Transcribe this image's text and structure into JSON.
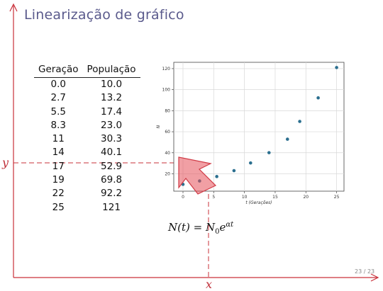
{
  "slide": {
    "title": "Linearização de gráfico",
    "page": "23 / 23"
  },
  "table": {
    "headers": [
      "Geração",
      "População"
    ],
    "rows": [
      [
        "0.0",
        "10.0"
      ],
      [
        "2.7",
        "13.2"
      ],
      [
        "5.5",
        "17.4"
      ],
      [
        "8.3",
        "23.0"
      ],
      [
        "11",
        "30.3"
      ],
      [
        "14",
        "40.1"
      ],
      [
        "17",
        "52.9"
      ],
      [
        "19",
        "69.8"
      ],
      [
        "22",
        "92.2"
      ],
      [
        "25",
        "121"
      ]
    ]
  },
  "formula": {
    "lhs": "N(t)",
    "base": "N",
    "sub": "0",
    "exp": "αt"
  },
  "labels": {
    "x": "x",
    "y": "y"
  },
  "chart_data": {
    "type": "scatter",
    "x": [
      0.0,
      2.7,
      5.5,
      8.3,
      11,
      14,
      17,
      19,
      22,
      25
    ],
    "y": [
      10.0,
      13.2,
      17.4,
      23.0,
      30.3,
      40.1,
      52.9,
      69.8,
      92.2,
      121
    ],
    "xlabel": "t (Gerações)",
    "ylabel": "N",
    "xticks": [
      0,
      5,
      10,
      15,
      20,
      25
    ],
    "yticks": [
      20,
      40,
      60,
      80,
      100,
      120
    ],
    "xlim": [
      -1.5,
      26.2
    ],
    "ylim": [
      3.5,
      126
    ],
    "grid": true,
    "point_color": "#2b6f8f"
  }
}
